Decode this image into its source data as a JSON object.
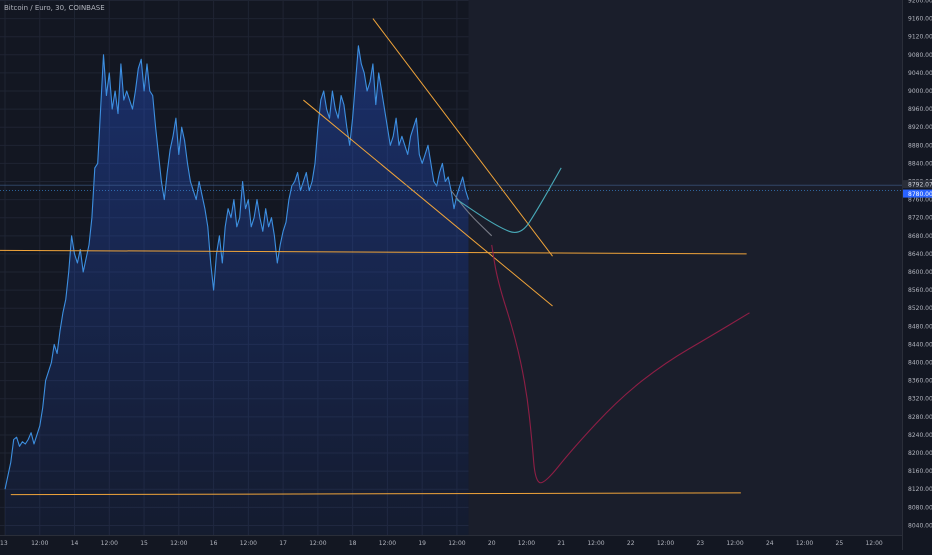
{
  "chart_data": {
    "type": "area",
    "title": "Bitcoin / Euro, 30, COINBASE",
    "xlabel": "",
    "ylabel": "",
    "ylim": [
      8020,
      9200
    ],
    "grid": true,
    "y_ticks": [
      8040,
      8080,
      8120,
      8160,
      8200,
      8240,
      8280,
      8320,
      8360,
      8400,
      8440,
      8480,
      8520,
      8560,
      8600,
      8640,
      8680,
      8720,
      8760,
      8800,
      8840,
      8880,
      8920,
      8960,
      9000,
      9040,
      9080,
      9120,
      9160,
      9200
    ],
    "x_ticks": [
      {
        "label": "13",
        "hour": 0
      },
      {
        "label": "12:00",
        "hour": 12
      },
      {
        "label": "14",
        "hour": 24
      },
      {
        "label": "12:00",
        "hour": 36
      },
      {
        "label": "15",
        "hour": 48
      },
      {
        "label": "12:00",
        "hour": 60
      },
      {
        "label": "16",
        "hour": 72
      },
      {
        "label": "12:00",
        "hour": 84
      },
      {
        "label": "17",
        "hour": 96
      },
      {
        "label": "12:00",
        "hour": 108
      },
      {
        "label": "18",
        "hour": 120
      },
      {
        "label": "12:00",
        "hour": 132
      },
      {
        "label": "19",
        "hour": 144
      },
      {
        "label": "12:00",
        "hour": 156
      },
      {
        "label": "20",
        "hour": 168
      },
      {
        "label": "12:00",
        "hour": 180
      },
      {
        "label": "21",
        "hour": 192
      },
      {
        "label": "12:00",
        "hour": 204
      },
      {
        "label": "22",
        "hour": 216
      },
      {
        "label": "12:00",
        "hour": 228
      },
      {
        "label": "23",
        "hour": 240
      },
      {
        "label": "12:00",
        "hour": 252
      },
      {
        "label": "24",
        "hour": 264
      },
      {
        "label": "12:00",
        "hour": 276
      },
      {
        "label": "25",
        "hour": 288
      },
      {
        "label": "12:00",
        "hour": 300
      }
    ],
    "price_labels": [
      "8792.07",
      "8780.00"
    ],
    "series": [
      {
        "color": "#2962ff",
        "line_color": "#3d8fe0",
        "points": [
          [
            0,
            8120
          ],
          [
            1,
            8150
          ],
          [
            2,
            8180
          ],
          [
            3,
            8230
          ],
          [
            4,
            8235
          ],
          [
            5,
            8215
          ],
          [
            6,
            8225
          ],
          [
            7,
            8220
          ],
          [
            8,
            8230
          ],
          [
            9,
            8245
          ],
          [
            10,
            8220
          ],
          [
            11,
            8240
          ],
          [
            12,
            8260
          ],
          [
            13,
            8300
          ],
          [
            14,
            8360
          ],
          [
            15,
            8380
          ],
          [
            16,
            8400
          ],
          [
            17,
            8440
          ],
          [
            18,
            8420
          ],
          [
            19,
            8470
          ],
          [
            20,
            8510
          ],
          [
            21,
            8540
          ],
          [
            22,
            8600
          ],
          [
            23,
            8680
          ],
          [
            24,
            8640
          ],
          [
            25,
            8620
          ],
          [
            26,
            8650
          ],
          [
            27,
            8600
          ],
          [
            28,
            8630
          ],
          [
            29,
            8660
          ],
          [
            30,
            8720
          ],
          [
            31,
            8830
          ],
          [
            32,
            8840
          ],
          [
            33,
            8960
          ],
          [
            34,
            9080
          ],
          [
            35,
            8990
          ],
          [
            36,
            9040
          ],
          [
            37,
            8960
          ],
          [
            38,
            9000
          ],
          [
            39,
            8950
          ],
          [
            40,
            9060
          ],
          [
            41,
            8980
          ],
          [
            42,
            9000
          ],
          [
            43,
            8980
          ],
          [
            44,
            8960
          ],
          [
            45,
            9000
          ],
          [
            46,
            9050
          ],
          [
            47,
            9070
          ],
          [
            48,
            9000
          ],
          [
            49,
            9060
          ],
          [
            50,
            9000
          ],
          [
            51,
            8990
          ],
          [
            52,
            8920
          ],
          [
            53,
            8860
          ],
          [
            54,
            8800
          ],
          [
            55,
            8760
          ],
          [
            56,
            8820
          ],
          [
            57,
            8870
          ],
          [
            58,
            8900
          ],
          [
            59,
            8940
          ],
          [
            60,
            8860
          ],
          [
            61,
            8920
          ],
          [
            62,
            8890
          ],
          [
            63,
            8840
          ],
          [
            64,
            8800
          ],
          [
            65,
            8780
          ],
          [
            66,
            8760
          ],
          [
            67,
            8800
          ],
          [
            68,
            8770
          ],
          [
            69,
            8740
          ],
          [
            70,
            8700
          ],
          [
            71,
            8620
          ],
          [
            72,
            8560
          ],
          [
            73,
            8640
          ],
          [
            74,
            8680
          ],
          [
            75,
            8620
          ],
          [
            76,
            8700
          ],
          [
            77,
            8740
          ],
          [
            78,
            8720
          ],
          [
            79,
            8760
          ],
          [
            80,
            8700
          ],
          [
            81,
            8720
          ],
          [
            82,
            8800
          ],
          [
            83,
            8740
          ],
          [
            84,
            8760
          ],
          [
            85,
            8700
          ],
          [
            86,
            8720
          ],
          [
            87,
            8760
          ],
          [
            88,
            8720
          ],
          [
            89,
            8690
          ],
          [
            90,
            8740
          ],
          [
            91,
            8700
          ],
          [
            92,
            8720
          ],
          [
            93,
            8680
          ],
          [
            94,
            8620
          ],
          [
            95,
            8660
          ],
          [
            96,
            8690
          ],
          [
            97,
            8710
          ],
          [
            98,
            8760
          ],
          [
            99,
            8790
          ],
          [
            100,
            8800
          ],
          [
            101,
            8820
          ],
          [
            102,
            8780
          ],
          [
            103,
            8800
          ],
          [
            104,
            8820
          ],
          [
            105,
            8780
          ],
          [
            106,
            8800
          ],
          [
            107,
            8840
          ],
          [
            108,
            8920
          ],
          [
            109,
            8980
          ],
          [
            110,
            9000
          ],
          [
            111,
            8960
          ],
          [
            112,
            8940
          ],
          [
            113,
            9000
          ],
          [
            114,
            8960
          ],
          [
            115,
            8940
          ],
          [
            116,
            8990
          ],
          [
            117,
            8970
          ],
          [
            118,
            8920
          ],
          [
            119,
            8880
          ],
          [
            120,
            8940
          ],
          [
            121,
            9020
          ],
          [
            122,
            9100
          ],
          [
            123,
            9060
          ],
          [
            124,
            9040
          ],
          [
            125,
            9000
          ],
          [
            126,
            9020
          ],
          [
            127,
            9060
          ],
          [
            128,
            8970
          ],
          [
            129,
            9040
          ],
          [
            130,
            9000
          ],
          [
            131,
            8960
          ],
          [
            132,
            8920
          ],
          [
            133,
            8880
          ],
          [
            134,
            8900
          ],
          [
            135,
            8940
          ],
          [
            136,
            8880
          ],
          [
            137,
            8900
          ],
          [
            138,
            8880
          ],
          [
            139,
            8860
          ],
          [
            140,
            8900
          ],
          [
            141,
            8920
          ],
          [
            142,
            8940
          ],
          [
            143,
            8860
          ],
          [
            144,
            8840
          ],
          [
            145,
            8860
          ],
          [
            146,
            8880
          ],
          [
            147,
            8840
          ],
          [
            148,
            8800
          ],
          [
            149,
            8790
          ],
          [
            150,
            8820
          ],
          [
            151,
            8840
          ],
          [
            152,
            8800
          ],
          [
            153,
            8810
          ],
          [
            154,
            8780
          ],
          [
            155,
            8740
          ],
          [
            156,
            8770
          ],
          [
            157,
            8790
          ],
          [
            158,
            8810
          ],
          [
            159,
            8780
          ],
          [
            160,
            8760
          ]
        ]
      }
    ],
    "horizontal_lines": [
      {
        "color": "#f0a43a",
        "y_start": 8648,
        "y_end": 8640,
        "x_start": -3,
        "x_end": 256
      },
      {
        "color": "#f0a43a",
        "y_start": 8108,
        "y_end": 8112,
        "x_start": 2,
        "x_end": 254
      }
    ],
    "trend_lines": [
      {
        "color": "#f0a43a",
        "points": [
          [
            103,
            8980
          ],
          [
            189,
            8525
          ]
        ]
      },
      {
        "color": "#f0a43a",
        "points": [
          [
            127,
            9160
          ],
          [
            189,
            8635
          ]
        ]
      }
    ],
    "projections": [
      {
        "color": "#8e1e45",
        "points": [
          [
            168,
            8660
          ],
          [
            170,
            8580
          ],
          [
            176,
            8460
          ],
          [
            180,
            8340
          ],
          [
            182,
            8220
          ],
          [
            183,
            8140
          ],
          [
            186,
            8130
          ],
          [
            196,
            8210
          ],
          [
            212,
            8320
          ],
          [
            228,
            8400
          ],
          [
            244,
            8460
          ],
          [
            257,
            8510
          ]
        ]
      },
      {
        "color": "#787b86",
        "points": [
          [
            154,
            8780
          ],
          [
            160,
            8730
          ],
          [
            168,
            8680
          ]
        ]
      },
      {
        "color": "#48a9b7",
        "points": [
          [
            156,
            8760
          ],
          [
            170,
            8700
          ],
          [
            178,
            8680
          ],
          [
            184,
            8740
          ],
          [
            192,
            8830
          ]
        ]
      }
    ]
  }
}
